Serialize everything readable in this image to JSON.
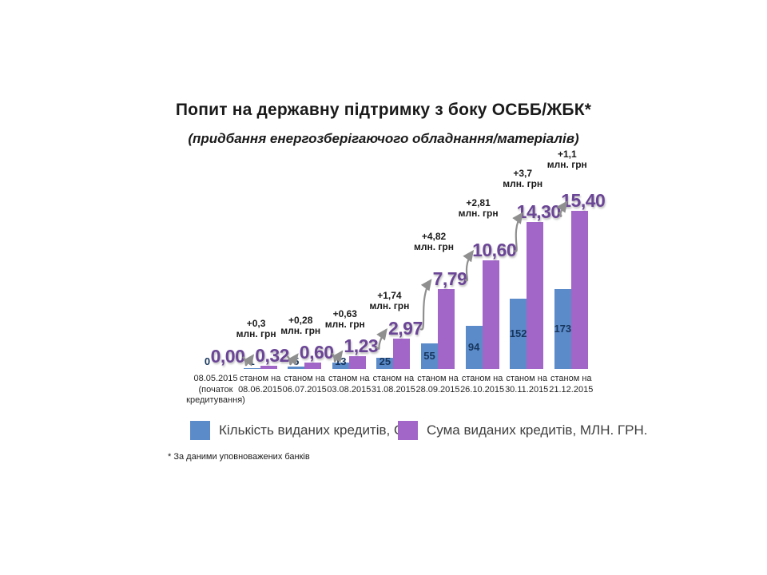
{
  "slide": {
    "title": "Попит на державну підтримку з боку ОСББ/ЖБК*",
    "subtitle": "(придбання енергозберігаючого обладнання/матеріалів)",
    "footnote": "* За даними  уповноважених  банків"
  },
  "legend": {
    "items": [
      {
        "label": "Кількість виданих кредитів, ОД.",
        "color": "#5B8BC9"
      },
      {
        "label": "Сума виданих кредитів, МЛН. ГРН.",
        "color": "#A266C9"
      }
    ]
  },
  "colors": {
    "count_bar": "#5B8BC9",
    "sum_bar": "#A266C9",
    "count_label": "#17365D",
    "sum_label": "#6B4596",
    "annotation": "#1a1a1a",
    "axis_label": "#262626",
    "arrow": "#8F8F8F"
  },
  "chart_data": {
    "type": "bar",
    "title": "Попит на державну підтримку з боку ОСББ/ЖБК*",
    "subtitle": "(придбання енергозберігаючого обладнання/матеріалів)",
    "footnote": "* За даними уповноважених банків",
    "categories": [
      [
        "08.05.2015",
        "(початок",
        "кредитування)"
      ],
      [
        "станом на",
        "08.06.2015"
      ],
      [
        "станом на",
        "06.07.2015"
      ],
      [
        "станом на",
        "03.08.2015"
      ],
      [
        "станом на",
        "31.08.2015"
      ],
      [
        "станом на",
        "28.09.2015"
      ],
      [
        "станом на",
        "26.10.2015"
      ],
      [
        "станом на",
        "30.11.2015"
      ],
      [
        "станом на",
        "21.12.2015"
      ]
    ],
    "series": [
      {
        "name": "Кількість виданих кредитів, ОД.",
        "values": [
          0,
          1,
          5,
          13,
          25,
          55,
          94,
          152,
          173
        ],
        "labels": [
          "0",
          "1",
          "5",
          "13",
          "25",
          "55",
          "94",
          "152",
          "173"
        ]
      },
      {
        "name": "Сума виданих кредитів, МЛН. ГРН.",
        "values": [
          0.0,
          0.32,
          0.6,
          1.23,
          2.97,
          7.79,
          10.6,
          14.3,
          15.4
        ],
        "labels": [
          "0,00",
          "0,32",
          "0,60",
          "1,23",
          "2,97",
          "7,79",
          "10,60",
          "14,30",
          "15,40"
        ]
      }
    ],
    "annotations": {
      "unit": "млн. грн",
      "deltas": [
        "",
        "+0,3",
        "+0,28",
        "+0,63",
        "+1,74",
        "+4,82",
        "+2,81",
        "+3,7",
        "+1,1"
      ]
    },
    "axes": {
      "y_axis_visible": false,
      "gridlines": false,
      "legend_position": "bottom"
    }
  }
}
